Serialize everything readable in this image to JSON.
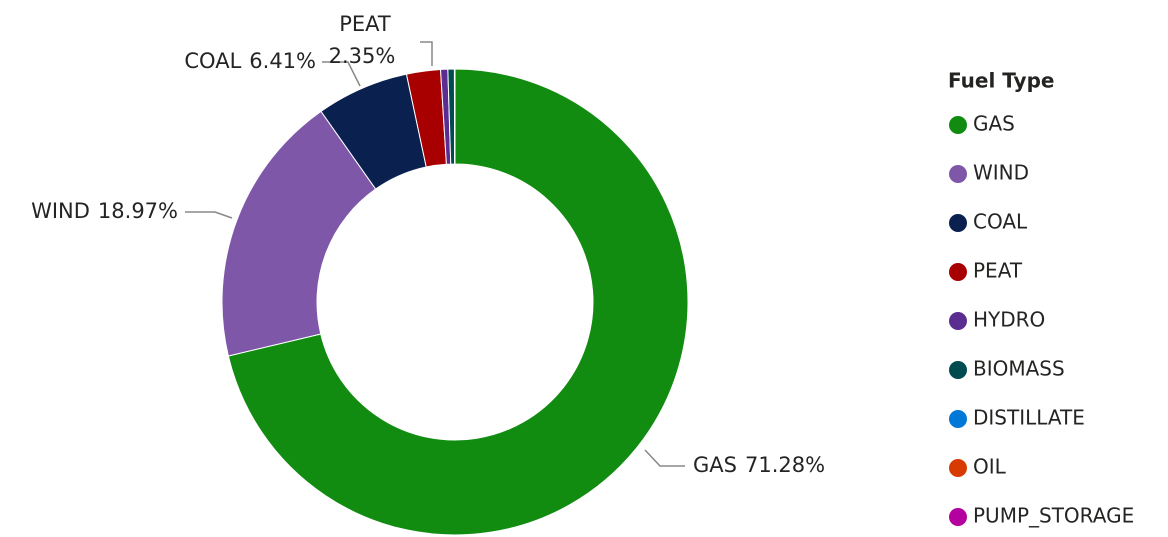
{
  "chart_data": {
    "type": "pie",
    "donut": true,
    "legend_title": "Fuel Type",
    "legend": "right",
    "categories": [
      "GAS",
      "WIND",
      "COAL",
      "PEAT",
      "HYDRO",
      "BIOMASS",
      "DISTILLATE",
      "OIL",
      "PUMP_STORAGE"
    ],
    "values": [
      71.28,
      18.97,
      6.41,
      2.35,
      0.5,
      0.45,
      0.02,
      0.01,
      0.01
    ],
    "value_labels": [
      "71.28%",
      "18.97%",
      "6.41%",
      "2.35%",
      null,
      null,
      null,
      null,
      null
    ],
    "colors": [
      "#118c11",
      "#7e57a8",
      "#0a2150",
      "#a80000",
      "#5c2d91",
      "#004b50",
      "#0078d7",
      "#d83b01",
      "#b4009e"
    ]
  }
}
